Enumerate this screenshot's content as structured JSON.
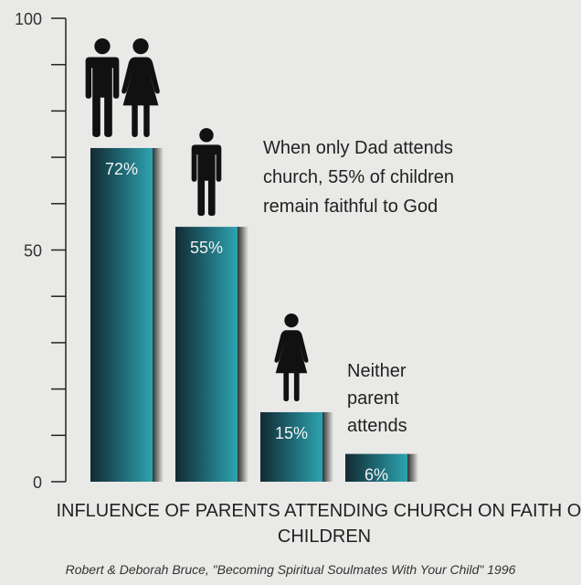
{
  "chart_data": {
    "type": "bar",
    "categories": [
      "Both parents attend",
      "Only Dad attends",
      "Only Mom attends",
      "Neither parent attends"
    ],
    "values": [
      72,
      55,
      15,
      6
    ],
    "value_labels": [
      "72%",
      "55%",
      "15%",
      "6%"
    ],
    "ylim": [
      0,
      100
    ],
    "y_ticks_labeled": [
      0,
      50,
      100
    ],
    "y_tick_labels": [
      "0",
      "50",
      "100"
    ],
    "y_minor_tick_step": 10,
    "bar_color_dark": "#16323c",
    "bar_color_light": "#2a97a4",
    "title": "INFLUENCE OF PARENTS ATTENDING CHURCH ON FAITH OF CHILDREN",
    "annotations": {
      "dad": "When only Dad attends church, 55% of children remain faithful to God",
      "neither": "Neither parent attends"
    },
    "source": "Robert & Deborah Bruce, \"Becoming Spiritual Soulmates With Your Child\" 1996",
    "icons": [
      "man-and-woman-icon",
      "man-icon",
      "woman-icon",
      "none"
    ]
  }
}
